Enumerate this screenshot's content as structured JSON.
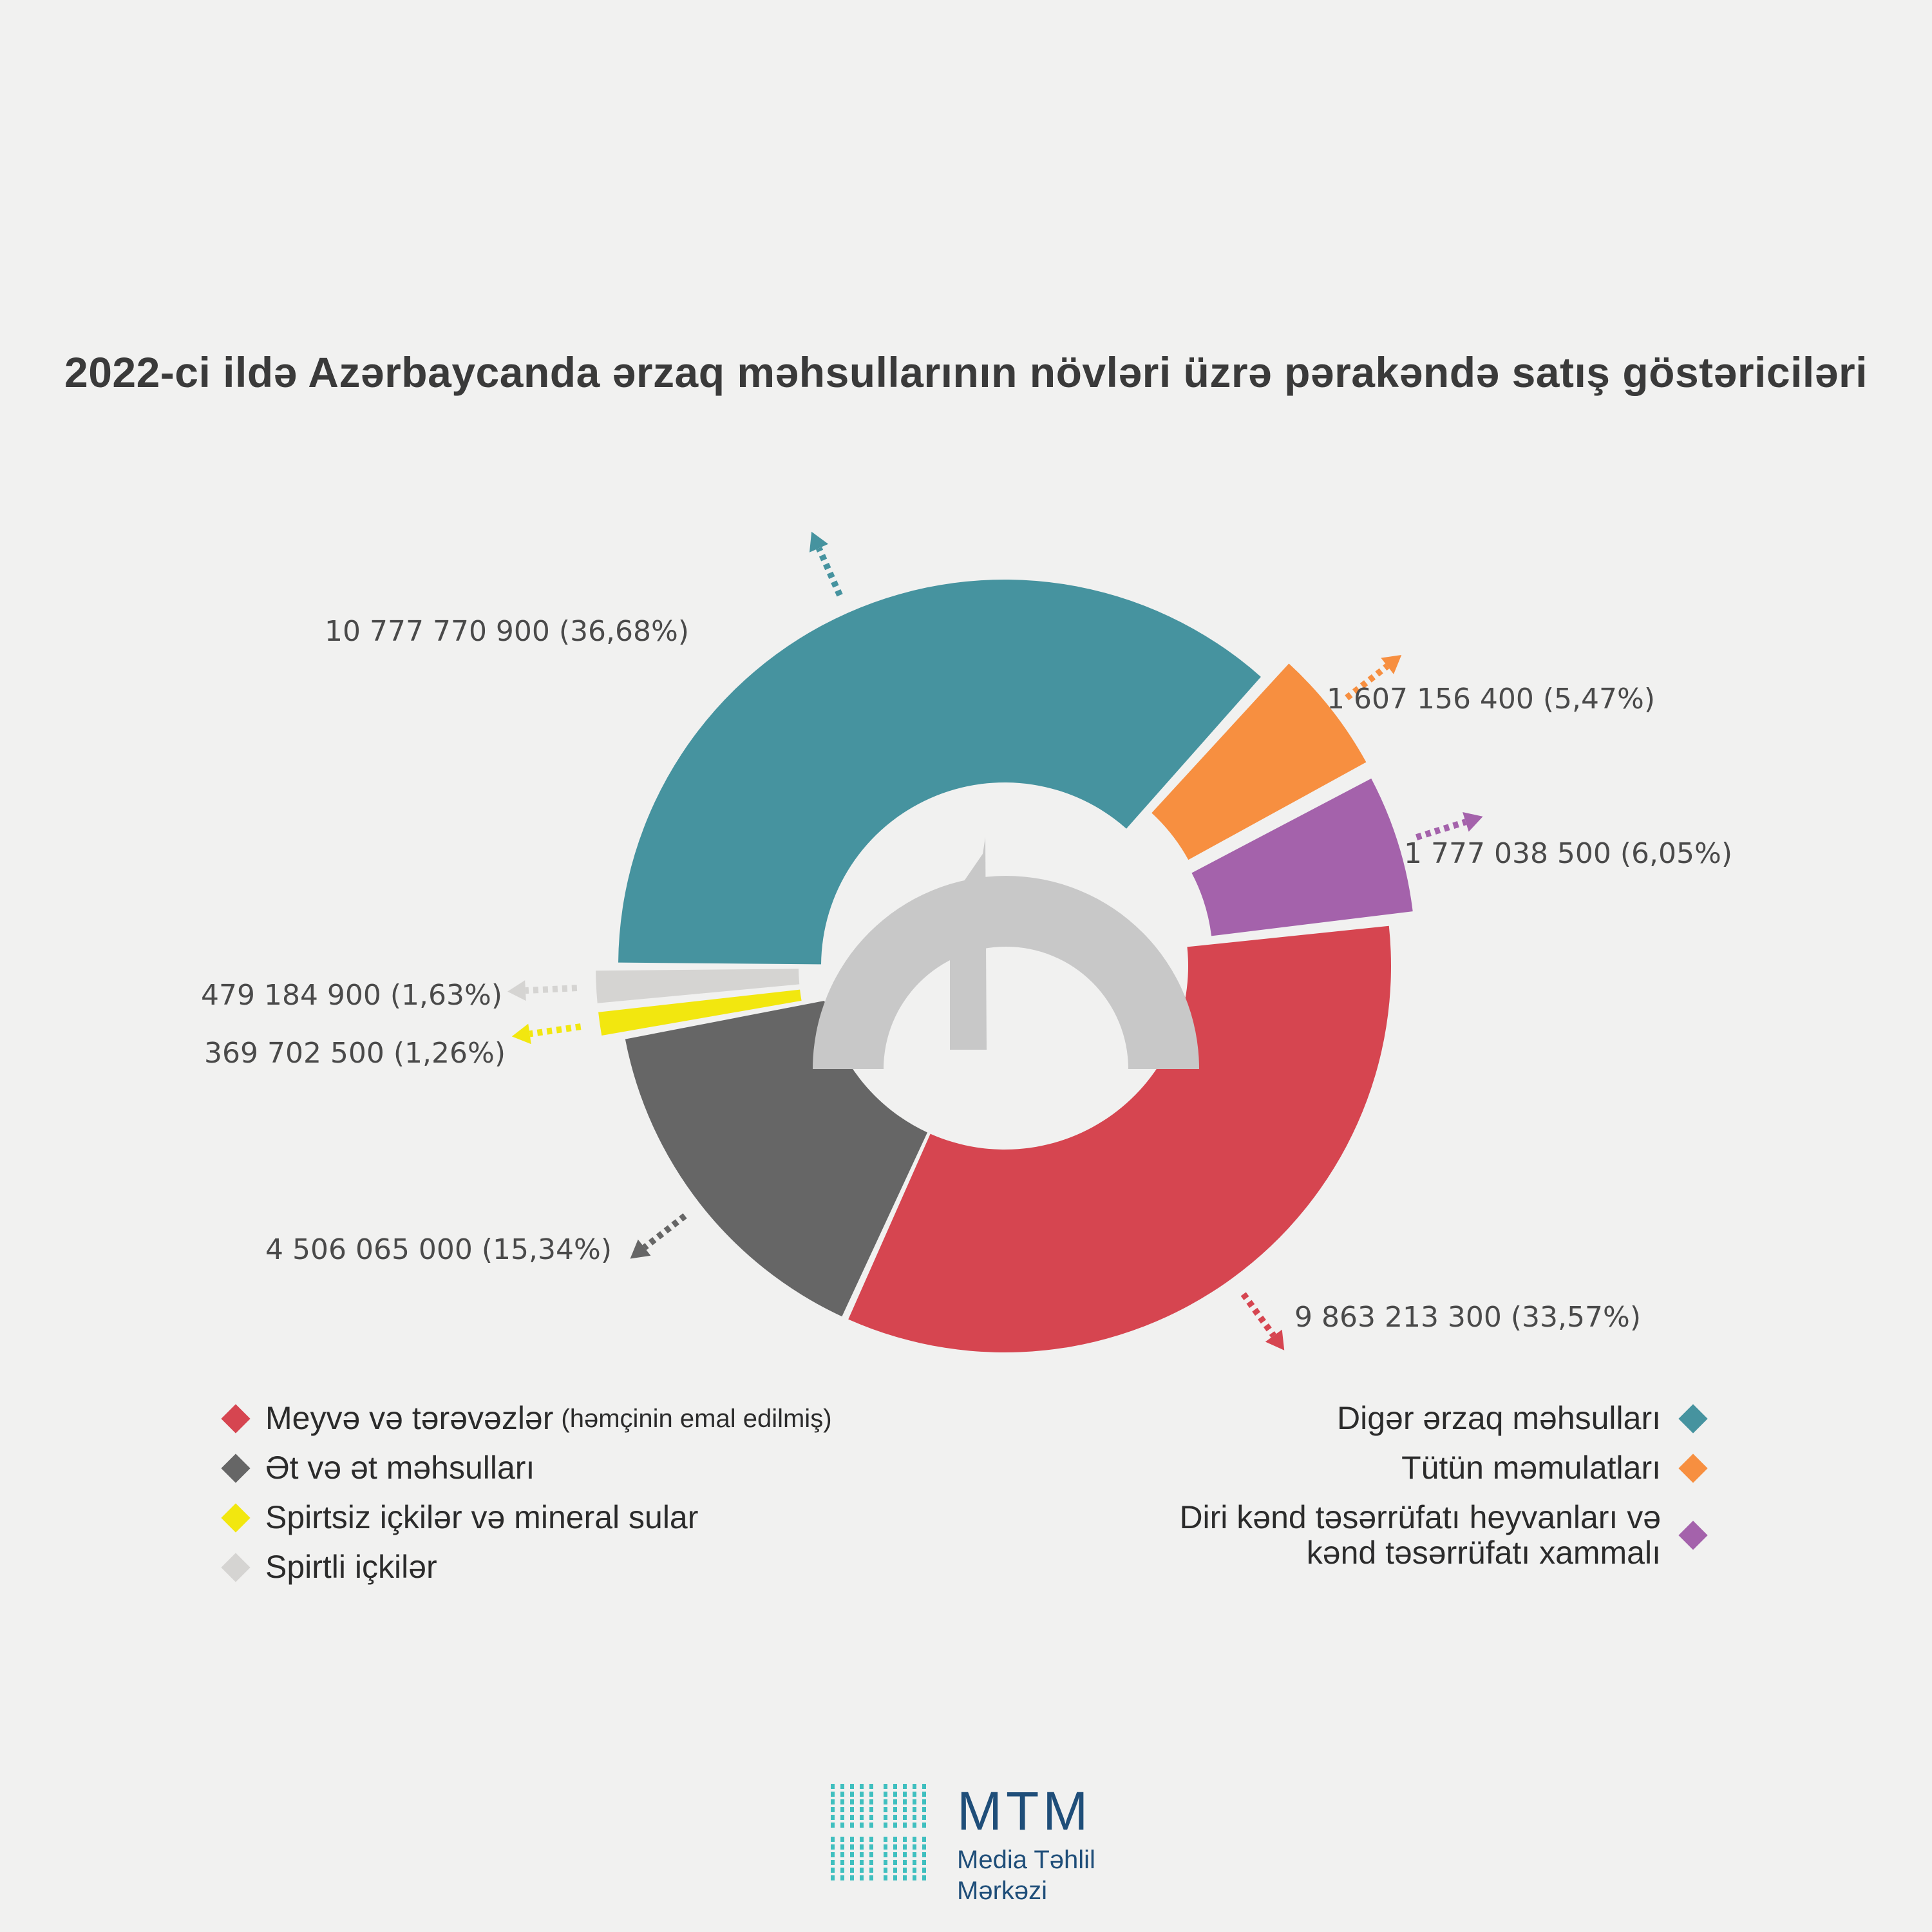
{
  "title": "2022-ci ildə Azərbaycanda ərzaq məhsullarının növləri üzrə pərakəndə satış göstəriciləri",
  "chart_data": {
    "type": "pie",
    "title": "2022-ci ildə Azərbaycanda ərzaq məhsullarının növləri üzrə pərakəndə satış göstəriciləri",
    "slices": [
      {
        "name": "Digər ərzaq məhsulları",
        "value": 10777770900,
        "percent": 36.68,
        "label": "10 777 770 900 (36,68%)",
        "color": "#46939f"
      },
      {
        "name": "Tütün məmulatları",
        "value": 1607156400,
        "percent": 5.47,
        "label": "1 607 156 400 (5,47%)",
        "color": "#f78f40"
      },
      {
        "name": "Diri kənd təsərrüfatı heyvanları və kənd təsərrüfatı xammalı",
        "value": 1777038500,
        "percent": 6.05,
        "label": "1 777 038 500 (6,05%)",
        "color": "#a462ab"
      },
      {
        "name": "Meyvə və tərəvəzlər (həmçinin emal edilmiş)",
        "value": 9863213300,
        "percent": 33.57,
        "label": "9 863 213 300 (33,57%)",
        "color": "#d64550"
      },
      {
        "name": "Ət və ət məhsulları",
        "value": 4506065000,
        "percent": 15.34,
        "label": "4 506 065 000 (15,34%)",
        "color": "#666666"
      },
      {
        "name": "Spirtsiz içkilər və mineral sular",
        "value": 369702500,
        "percent": 1.26,
        "label": "369 702 500 (1,26%)",
        "color": "#f2e70f"
      },
      {
        "name": "Spirtli içkilər",
        "value": 479184900,
        "percent": 1.63,
        "label": "479 184 900 (1,63%)",
        "color": "#d5d4d2"
      }
    ],
    "legend_placement": "bottom"
  },
  "legend_left": [
    {
      "label": "Meyvə və tərəvəzlər",
      "note": "(həmçinin emal edilmiş)",
      "color": "#d64550"
    },
    {
      "label": "Ət və ət məhsulları",
      "note": "",
      "color": "#666666"
    },
    {
      "label": "Spirtsiz içkilər və mineral sular",
      "note": "",
      "color": "#f2e70f"
    },
    {
      "label": "Spirtli içkilər",
      "note": "",
      "color": "#d5d4d2"
    }
  ],
  "legend_right": [
    {
      "label": "Digər ərzaq məhsulları",
      "color": "#46939f"
    },
    {
      "label": "Tütün məmulatları",
      "color": "#f78f40"
    },
    {
      "label": "Diri kənd təsərrüfatı heyvanları və\nkənd təsərrüfatı xammalı",
      "color": "#a462ab"
    }
  ],
  "center_icon": "manat-sign-icon",
  "logo": {
    "name": "MTM",
    "subtitle": "Media Təhlil\nMərkəzi",
    "color": "#1f4e79",
    "mark_color": "#3fbfbf"
  }
}
